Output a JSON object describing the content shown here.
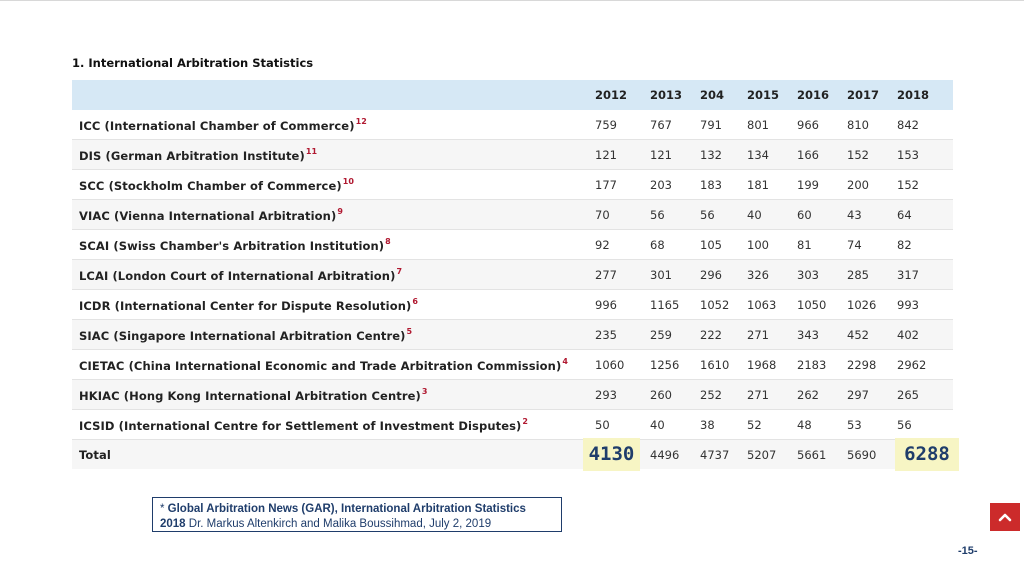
{
  "title": "1. International Arbitration Statistics",
  "columns": [
    "2012",
    "2013",
    "204",
    "2015",
    "2016",
    "2017",
    "2018"
  ],
  "rows": [
    {
      "name": "ICC (International Chamber of Commerce)",
      "ref": "12",
      "values": [
        "759",
        "767",
        "791",
        "801",
        "966",
        "810",
        "842"
      ]
    },
    {
      "name": "DIS (German Arbitration Institute)",
      "ref": "11",
      "values": [
        "121",
        "121",
        "132",
        "134",
        "166",
        "152",
        "153"
      ]
    },
    {
      "name": "SCC (Stockholm Chamber of Commerce)",
      "ref": "10",
      "values": [
        "177",
        "203",
        "183",
        "181",
        "199",
        "200",
        "152"
      ]
    },
    {
      "name": "VIAC (Vienna International Arbitration)",
      "ref": "9",
      "values": [
        "70",
        "56",
        "56",
        "40",
        "60",
        "43",
        "64"
      ]
    },
    {
      "name": "SCAI (Swiss Chamber's Arbitration Institution)",
      "ref": "8",
      "values": [
        "92",
        "68",
        "105",
        "100",
        "81",
        "74",
        "82"
      ]
    },
    {
      "name": "LCAI (London Court of International Arbitration)",
      "ref": "7",
      "values": [
        "277",
        "301",
        "296",
        "326",
        "303",
        "285",
        "317"
      ]
    },
    {
      "name": "ICDR (International Center for Dispute Resolution)",
      "ref": "6",
      "values": [
        "996",
        "1165",
        "1052",
        "1063",
        "1050",
        "1026",
        "993"
      ]
    },
    {
      "name": "SIAC (Singapore International Arbitration Centre)",
      "ref": "5",
      "values": [
        "235",
        "259",
        "222",
        "271",
        "343",
        "452",
        "402"
      ]
    },
    {
      "name": "CIETAC (China International Economic and Trade Arbitration Commission)",
      "ref": "4",
      "values": [
        "1060",
        "1256",
        "1610",
        "1968",
        "2183",
        "2298",
        "2962"
      ]
    },
    {
      "name": "HKIAC (Hong Kong International Arbitration Centre)",
      "ref": "3",
      "values": [
        "293",
        "260",
        "252",
        "271",
        "262",
        "297",
        "265"
      ]
    },
    {
      "name": "ICSID (International Centre for Settlement of Investment Disputes)",
      "ref": "2",
      "values": [
        "50",
        "40",
        "38",
        "52",
        "48",
        "53",
        "56"
      ]
    }
  ],
  "total": {
    "label": "Total",
    "values": [
      "4130",
      "4496",
      "4737",
      "5207",
      "5661",
      "5690",
      "6288"
    ]
  },
  "source": {
    "star": "* ",
    "bold1": "Global Arbitration News (GAR), International Arbitration Statistics",
    "bold2": "2018",
    "rest": " Dr. Markus Altenkirch and Malika Boussihmad,  July 2, 2019"
  },
  "page_number": "-15-",
  "colors": {
    "header_bg": "#d6e8f5",
    "highlight_bg": "#f7f5c4",
    "accent": "#cc2b2b",
    "navy": "#1f3d6b"
  },
  "icons": {
    "back_to_top": "chevron-up-icon"
  }
}
